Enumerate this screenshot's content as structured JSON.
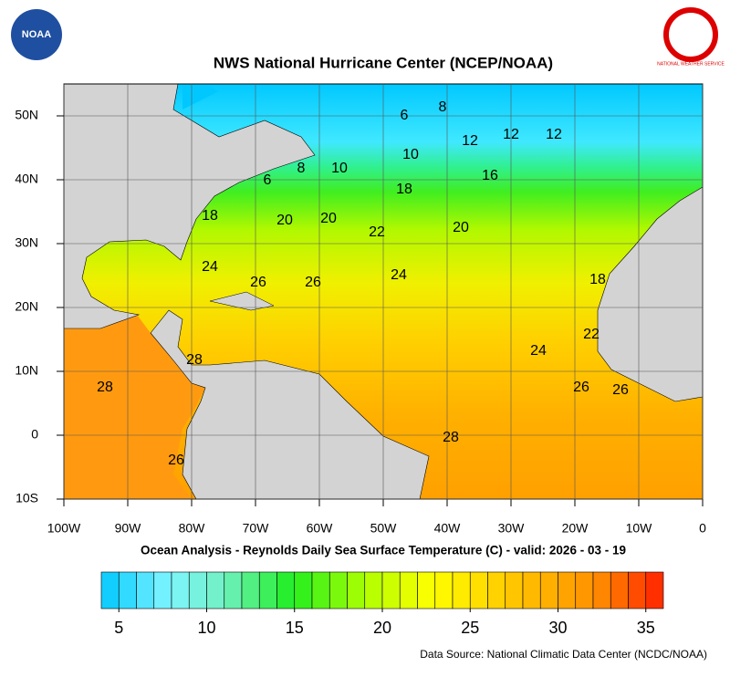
{
  "header": {
    "title": "NWS National Hurricane Center (NCEP/NOAA)",
    "left_logo": "NOAA",
    "right_logo": "NATIONAL WEATHER SERVICE"
  },
  "map": {
    "lon_ticks": [
      {
        "value": -100,
        "label": "100W"
      },
      {
        "value": -90,
        "label": "90W"
      },
      {
        "value": -80,
        "label": "80W"
      },
      {
        "value": -70,
        "label": "70W"
      },
      {
        "value": -60,
        "label": "60W"
      },
      {
        "value": -50,
        "label": "50W"
      },
      {
        "value": -40,
        "label": "40W"
      },
      {
        "value": -30,
        "label": "30W"
      },
      {
        "value": -20,
        "label": "20W"
      },
      {
        "value": -10,
        "label": "10W"
      },
      0
    ],
    "lat_ticks": [
      {
        "value": -10,
        "label": "10S"
      },
      0,
      {
        "value": 10,
        "label": "10N"
      },
      {
        "value": 20,
        "label": "20N"
      },
      {
        "value": 30,
        "label": "30N"
      },
      {
        "value": 40,
        "label": "40N"
      },
      {
        "value": 50,
        "label": "50N"
      }
    ],
    "lonlim": [
      -100,
      0
    ],
    "latlim": [
      -10,
      55
    ],
    "contour_labels": [
      6,
      8,
      12,
      12,
      12,
      10,
      16,
      8,
      10,
      6,
      18,
      18,
      20,
      20,
      22,
      20,
      24,
      26,
      26,
      24,
      18,
      28,
      24,
      22,
      28,
      26,
      26,
      28,
      26
    ]
  },
  "caption": "Ocean Analysis - Reynolds Daily Sea Surface Temperature (C) - valid: 2026 - 03 - 19",
  "colorbar": {
    "lim": [
      4,
      36
    ],
    "ticks": [
      5,
      10,
      15,
      20,
      25,
      30,
      35
    ]
  },
  "source": "Data Source: National Climatic Data Center (NCDC/NOAA)"
}
